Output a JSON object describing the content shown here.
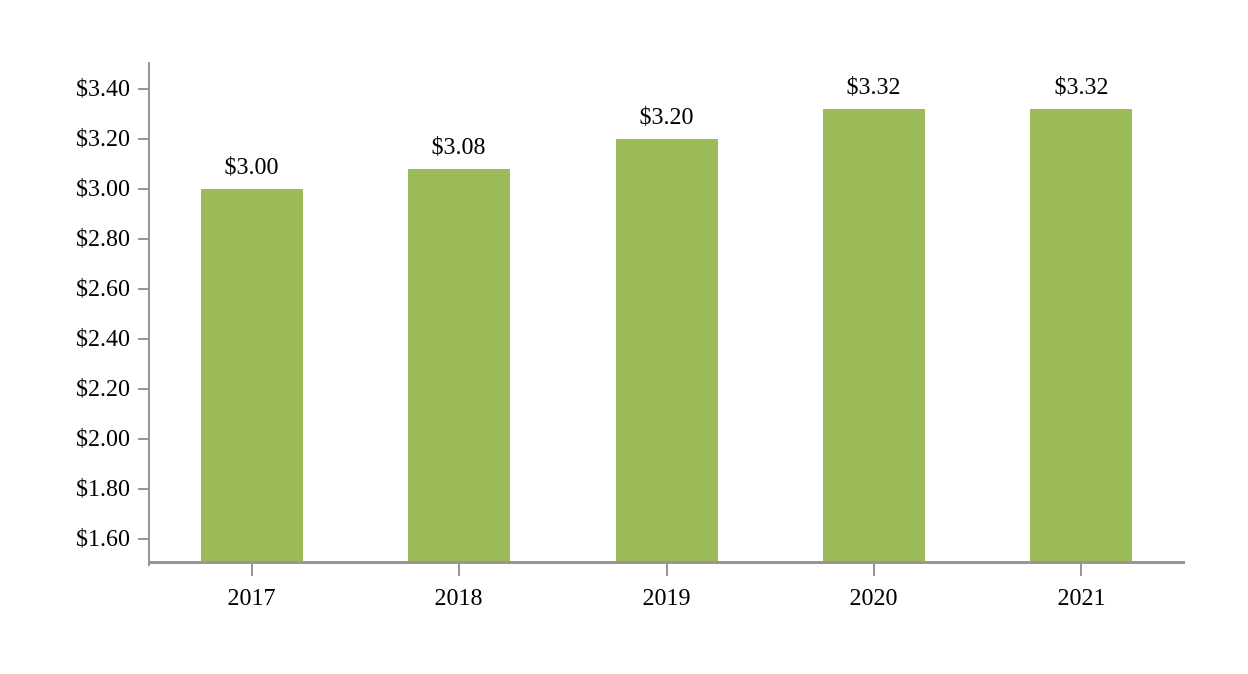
{
  "chart_data": {
    "type": "bar",
    "title": "",
    "xlabel": "",
    "ylabel": "",
    "categories": [
      "2017",
      "2018",
      "2019",
      "2020",
      "2021"
    ],
    "values": [
      3.0,
      3.08,
      3.2,
      3.32,
      3.32
    ],
    "data_labels": [
      "$3.00",
      "$3.08",
      "$3.20",
      "$3.32",
      "$3.32"
    ],
    "series_name": "",
    "y_ticks": [
      {
        "value": 1.6,
        "label": "$1.60"
      },
      {
        "value": 1.8,
        "label": "$1.80"
      },
      {
        "value": 2.0,
        "label": "$2.00"
      },
      {
        "value": 2.2,
        "label": "$2.20"
      },
      {
        "value": 2.4,
        "label": "$2.40"
      },
      {
        "value": 2.6,
        "label": "$2.60"
      },
      {
        "value": 2.8,
        "label": "$2.80"
      },
      {
        "value": 3.0,
        "label": "$3.00"
      },
      {
        "value": 3.2,
        "label": "$3.20"
      },
      {
        "value": 3.4,
        "label": "$3.40"
      }
    ],
    "ylim": [
      1.5,
      3.5
    ],
    "grid": false,
    "legend": false,
    "colors": {
      "bar": "#9BBB59",
      "axis": "#969696",
      "text": "#000000",
      "background": "#FFFFFF"
    }
  }
}
